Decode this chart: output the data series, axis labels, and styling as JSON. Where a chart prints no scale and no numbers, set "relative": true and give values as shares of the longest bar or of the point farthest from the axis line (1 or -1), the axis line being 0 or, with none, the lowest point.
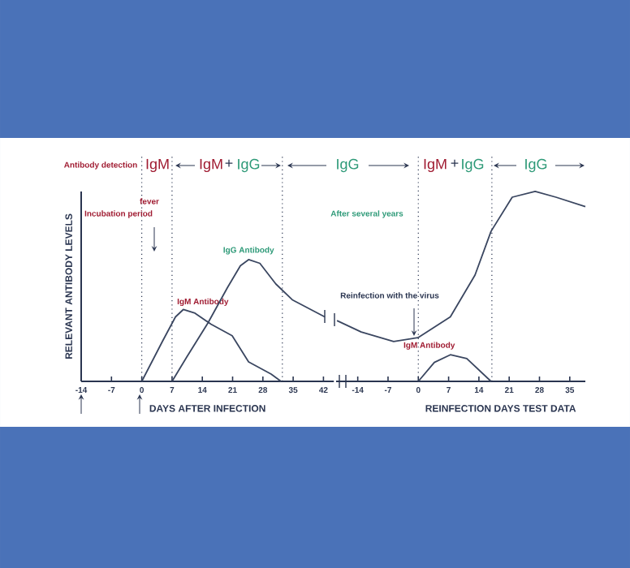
{
  "chart_data": [
    {
      "type": "line",
      "relative": true,
      "xlabel": "DAYS AFTER INFECTION",
      "ylabel": "RELEVANT ANTIBODY LEVELS",
      "xlim": [
        -14,
        44.4
      ],
      "xticks": [
        -14,
        -7,
        0,
        7,
        14,
        21,
        28,
        35,
        42
      ],
      "series": [
        {
          "name": "IgM Antibody",
          "color": "#3a4660",
          "x": [
            0,
            4.8,
            7.8,
            9.6,
            12.3,
            16,
            20.9,
            24.7,
            29.9,
            32.2
          ],
          "values": [
            0,
            0.33,
            0.53,
            0.59,
            0.56,
            0.47,
            0.375,
            0.16,
            0.06,
            0
          ]
        },
        {
          "name": "IgG Antibody",
          "color": "#3a4660",
          "x": [
            7,
            10.4,
            15.3,
            19.8,
            22.8,
            24.7,
            27.3,
            31,
            34.8,
            42.3
          ],
          "values": [
            0,
            0.2,
            0.48,
            0.77,
            0.95,
            1.0,
            0.97,
            0.8,
            0.67,
            0.53
          ]
        }
      ],
      "ref_lines": [
        {
          "axis": "x",
          "value": 0,
          "line_style": "dotted"
        },
        {
          "axis": "x",
          "value": 7,
          "line_style": "dotted"
        },
        {
          "axis": "x",
          "value": 32.5,
          "line_style": "dotted"
        }
      ],
      "annotations": [
        "Antibody detection",
        "IgM",
        "IgM",
        "+",
        "IgG",
        "IgG",
        "fever",
        "Incubation period"
      ],
      "marker": "none",
      "line_style": "solid"
    },
    {
      "type": "line",
      "relative": true,
      "xlabel": "REINFECTION DAYS TEST DATA",
      "xlim": [
        -19,
        38.6
      ],
      "xticks": [
        -14,
        -7,
        0,
        7,
        14,
        21,
        28,
        35
      ],
      "series": [
        {
          "color": "#3a4660",
          "x": [
            -18.8,
            -13.2,
            -5.7,
            -0.1,
            7.4,
            13.1,
            16.8,
            21.7,
            27,
            31.8,
            38.6
          ],
          "values": [
            0.32,
            0.26,
            0.21,
            0.23,
            0.34,
            0.56,
            0.79,
            0.97,
            1.0,
            0.97,
            0.92
          ]
        },
        {
          "name": "IgM Antibody",
          "color": "#3a4660",
          "x": [
            0,
            3.7,
            7.4,
            11.2,
            16.8
          ],
          "values": [
            0,
            0.1,
            0.14,
            0.12,
            0
          ]
        }
      ],
      "ref_lines": [
        {
          "axis": "x",
          "value": 0,
          "line_style": "dotted"
        },
        {
          "axis": "x",
          "value": 17,
          "line_style": "dotted"
        }
      ],
      "annotations": [
        "IgM",
        "+",
        "IgG",
        "IgG",
        "After several years",
        "Reinfection with the virus"
      ],
      "marker": "none",
      "line_style": "solid"
    }
  ]
}
